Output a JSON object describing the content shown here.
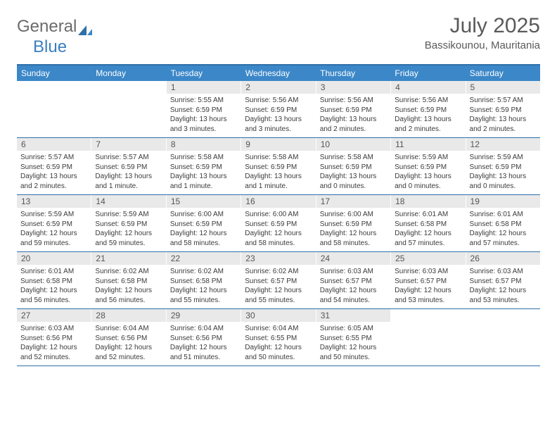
{
  "logo": {
    "part1": "General",
    "part2": "Blue"
  },
  "header": {
    "month_year": "July 2025",
    "location": "Bassikounou, Mauritania"
  },
  "styling": {
    "header_bar_color": "#3b87c8",
    "border_color": "#2f6fa8",
    "daynum_bg": "#e9e9e9",
    "text_color": "#333333",
    "logo_gray": "#6b6b6b",
    "logo_blue": "#3b7fbf",
    "title_fontsize": 30,
    "loc_fontsize": 15,
    "weekday_fontsize": 12,
    "daynum_fontsize": 12,
    "body_fontsize": 10
  },
  "weekdays": [
    "Sunday",
    "Monday",
    "Tuesday",
    "Wednesday",
    "Thursday",
    "Friday",
    "Saturday"
  ],
  "weeks": [
    [
      {
        "day": "",
        "sunrise": "",
        "sunset": "",
        "daylight": ""
      },
      {
        "day": "",
        "sunrise": "",
        "sunset": "",
        "daylight": ""
      },
      {
        "day": "1",
        "sunrise": "Sunrise: 5:55 AM",
        "sunset": "Sunset: 6:59 PM",
        "daylight": "Daylight: 13 hours and 3 minutes."
      },
      {
        "day": "2",
        "sunrise": "Sunrise: 5:56 AM",
        "sunset": "Sunset: 6:59 PM",
        "daylight": "Daylight: 13 hours and 3 minutes."
      },
      {
        "day": "3",
        "sunrise": "Sunrise: 5:56 AM",
        "sunset": "Sunset: 6:59 PM",
        "daylight": "Daylight: 13 hours and 2 minutes."
      },
      {
        "day": "4",
        "sunrise": "Sunrise: 5:56 AM",
        "sunset": "Sunset: 6:59 PM",
        "daylight": "Daylight: 13 hours and 2 minutes."
      },
      {
        "day": "5",
        "sunrise": "Sunrise: 5:57 AM",
        "sunset": "Sunset: 6:59 PM",
        "daylight": "Daylight: 13 hours and 2 minutes."
      }
    ],
    [
      {
        "day": "6",
        "sunrise": "Sunrise: 5:57 AM",
        "sunset": "Sunset: 6:59 PM",
        "daylight": "Daylight: 13 hours and 2 minutes."
      },
      {
        "day": "7",
        "sunrise": "Sunrise: 5:57 AM",
        "sunset": "Sunset: 6:59 PM",
        "daylight": "Daylight: 13 hours and 1 minute."
      },
      {
        "day": "8",
        "sunrise": "Sunrise: 5:58 AM",
        "sunset": "Sunset: 6:59 PM",
        "daylight": "Daylight: 13 hours and 1 minute."
      },
      {
        "day": "9",
        "sunrise": "Sunrise: 5:58 AM",
        "sunset": "Sunset: 6:59 PM",
        "daylight": "Daylight: 13 hours and 1 minute."
      },
      {
        "day": "10",
        "sunrise": "Sunrise: 5:58 AM",
        "sunset": "Sunset: 6:59 PM",
        "daylight": "Daylight: 13 hours and 0 minutes."
      },
      {
        "day": "11",
        "sunrise": "Sunrise: 5:59 AM",
        "sunset": "Sunset: 6:59 PM",
        "daylight": "Daylight: 13 hours and 0 minutes."
      },
      {
        "day": "12",
        "sunrise": "Sunrise: 5:59 AM",
        "sunset": "Sunset: 6:59 PM",
        "daylight": "Daylight: 13 hours and 0 minutes."
      }
    ],
    [
      {
        "day": "13",
        "sunrise": "Sunrise: 5:59 AM",
        "sunset": "Sunset: 6:59 PM",
        "daylight": "Daylight: 12 hours and 59 minutes."
      },
      {
        "day": "14",
        "sunrise": "Sunrise: 5:59 AM",
        "sunset": "Sunset: 6:59 PM",
        "daylight": "Daylight: 12 hours and 59 minutes."
      },
      {
        "day": "15",
        "sunrise": "Sunrise: 6:00 AM",
        "sunset": "Sunset: 6:59 PM",
        "daylight": "Daylight: 12 hours and 58 minutes."
      },
      {
        "day": "16",
        "sunrise": "Sunrise: 6:00 AM",
        "sunset": "Sunset: 6:59 PM",
        "daylight": "Daylight: 12 hours and 58 minutes."
      },
      {
        "day": "17",
        "sunrise": "Sunrise: 6:00 AM",
        "sunset": "Sunset: 6:59 PM",
        "daylight": "Daylight: 12 hours and 58 minutes."
      },
      {
        "day": "18",
        "sunrise": "Sunrise: 6:01 AM",
        "sunset": "Sunset: 6:58 PM",
        "daylight": "Daylight: 12 hours and 57 minutes."
      },
      {
        "day": "19",
        "sunrise": "Sunrise: 6:01 AM",
        "sunset": "Sunset: 6:58 PM",
        "daylight": "Daylight: 12 hours and 57 minutes."
      }
    ],
    [
      {
        "day": "20",
        "sunrise": "Sunrise: 6:01 AM",
        "sunset": "Sunset: 6:58 PM",
        "daylight": "Daylight: 12 hours and 56 minutes."
      },
      {
        "day": "21",
        "sunrise": "Sunrise: 6:02 AM",
        "sunset": "Sunset: 6:58 PM",
        "daylight": "Daylight: 12 hours and 56 minutes."
      },
      {
        "day": "22",
        "sunrise": "Sunrise: 6:02 AM",
        "sunset": "Sunset: 6:58 PM",
        "daylight": "Daylight: 12 hours and 55 minutes."
      },
      {
        "day": "23",
        "sunrise": "Sunrise: 6:02 AM",
        "sunset": "Sunset: 6:57 PM",
        "daylight": "Daylight: 12 hours and 55 minutes."
      },
      {
        "day": "24",
        "sunrise": "Sunrise: 6:03 AM",
        "sunset": "Sunset: 6:57 PM",
        "daylight": "Daylight: 12 hours and 54 minutes."
      },
      {
        "day": "25",
        "sunrise": "Sunrise: 6:03 AM",
        "sunset": "Sunset: 6:57 PM",
        "daylight": "Daylight: 12 hours and 53 minutes."
      },
      {
        "day": "26",
        "sunrise": "Sunrise: 6:03 AM",
        "sunset": "Sunset: 6:57 PM",
        "daylight": "Daylight: 12 hours and 53 minutes."
      }
    ],
    [
      {
        "day": "27",
        "sunrise": "Sunrise: 6:03 AM",
        "sunset": "Sunset: 6:56 PM",
        "daylight": "Daylight: 12 hours and 52 minutes."
      },
      {
        "day": "28",
        "sunrise": "Sunrise: 6:04 AM",
        "sunset": "Sunset: 6:56 PM",
        "daylight": "Daylight: 12 hours and 52 minutes."
      },
      {
        "day": "29",
        "sunrise": "Sunrise: 6:04 AM",
        "sunset": "Sunset: 6:56 PM",
        "daylight": "Daylight: 12 hours and 51 minutes."
      },
      {
        "day": "30",
        "sunrise": "Sunrise: 6:04 AM",
        "sunset": "Sunset: 6:55 PM",
        "daylight": "Daylight: 12 hours and 50 minutes."
      },
      {
        "day": "31",
        "sunrise": "Sunrise: 6:05 AM",
        "sunset": "Sunset: 6:55 PM",
        "daylight": "Daylight: 12 hours and 50 minutes."
      },
      {
        "day": "",
        "sunrise": "",
        "sunset": "",
        "daylight": ""
      },
      {
        "day": "",
        "sunrise": "",
        "sunset": "",
        "daylight": ""
      }
    ]
  ]
}
